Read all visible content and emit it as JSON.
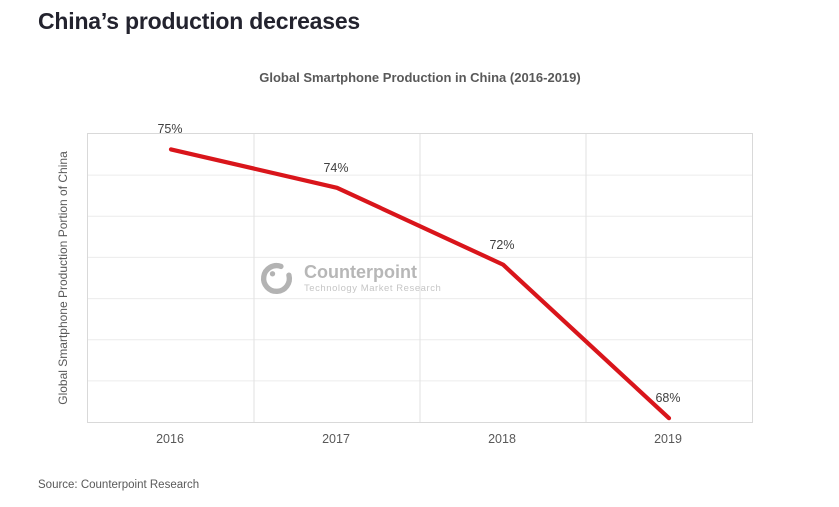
{
  "heading": "China’s production decreases",
  "source": "Source: Counterpoint Research",
  "watermark": {
    "name": "Counterpoint",
    "tagline": "Technology Market Research"
  },
  "chart_data": {
    "type": "line",
    "title": "Global Smartphone Production in China (2016-2019)",
    "xlabel": "",
    "ylabel": "Global Smartphone Production Portion of China",
    "categories": [
      "2016",
      "2017",
      "2018",
      "2019"
    ],
    "series": [
      {
        "name": "Global smartphone production portion of China",
        "values": [
          75,
          74,
          72,
          68
        ]
      }
    ],
    "point_labels": [
      "75%",
      "74%",
      "72%",
      "68%"
    ],
    "ylim": [
      67.9,
      75.4
    ],
    "grid": true,
    "legend": false,
    "colors": {
      "line": "#d9151b",
      "grid_h": "#ececec",
      "grid_v": "#e2e2e2",
      "plot_border": "#d9d9d9",
      "point_label": "#404040",
      "axis_text": "#595959"
    }
  }
}
